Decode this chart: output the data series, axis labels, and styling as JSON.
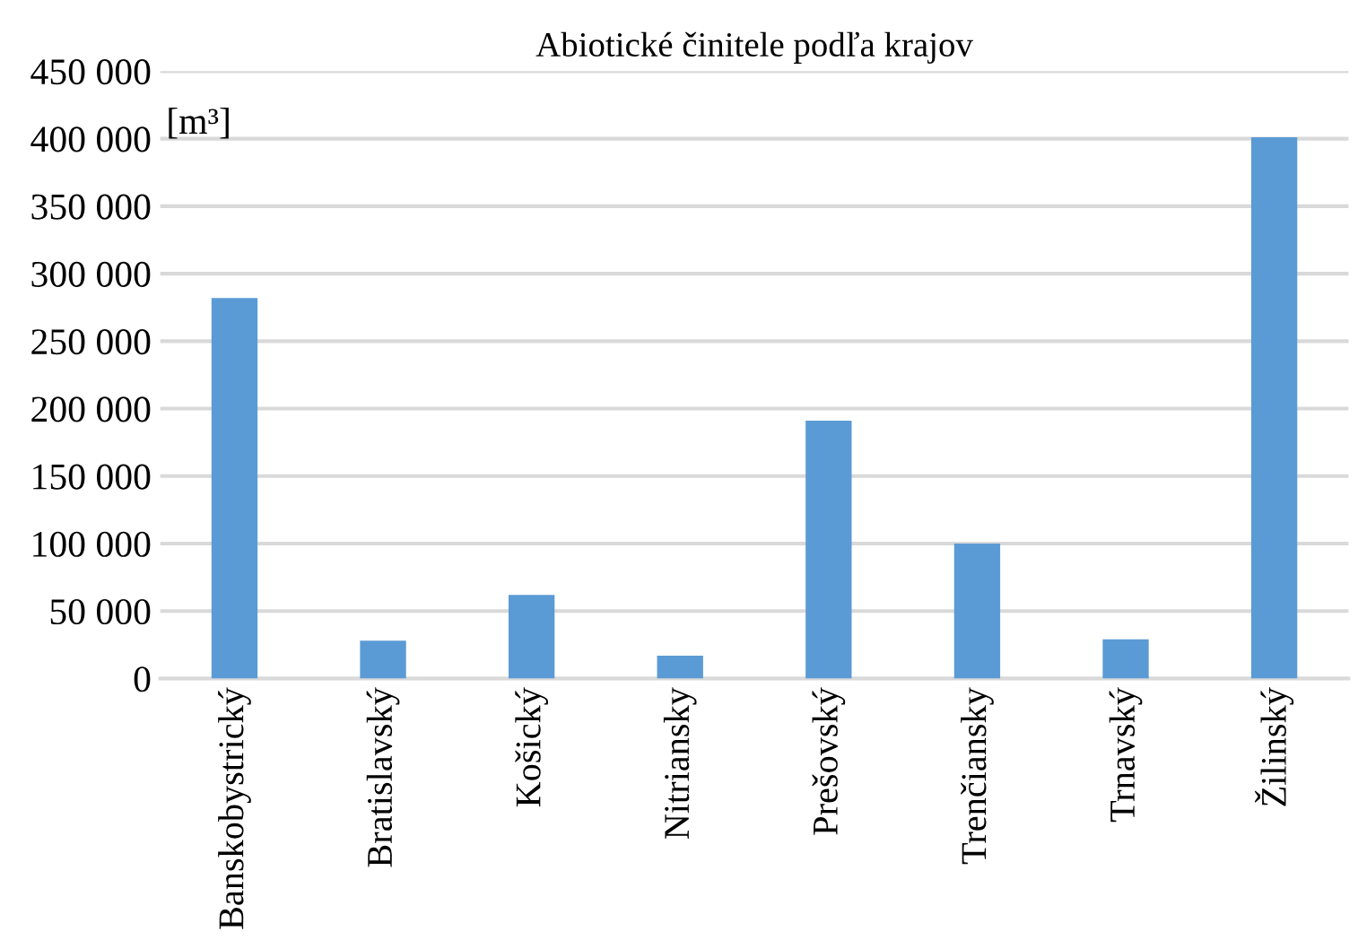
{
  "chart_data": {
    "type": "bar",
    "title": "Abiotické činitele podľa krajov",
    "ylabel": "[m³]",
    "categories": [
      "Banskobystrický",
      "Bratislavský",
      "Košický",
      "Nitriansky",
      "Prešovský",
      "Trenčiansky",
      "Trnavský",
      "Žilinský"
    ],
    "values": [
      282000,
      28000,
      62000,
      17000,
      191000,
      100000,
      29000,
      401000
    ],
    "color": "#5b9bd5",
    "ylim": [
      0,
      450000
    ],
    "yticks": [
      0,
      {
        "value": 50000,
        "label": "50 000"
      },
      {
        "value": 100000,
        "label": "100 000"
      },
      {
        "value": 150000,
        "label": "150 000"
      },
      {
        "value": 200000,
        "label": "200 000"
      },
      {
        "value": 250000,
        "label": "250 000"
      },
      {
        "value": 300000,
        "label": "300 000"
      },
      {
        "value": 350000,
        "label": "350 000"
      },
      {
        "value": 400000,
        "label": "400 000"
      },
      {
        "value": 450000,
        "label": "450 000"
      }
    ],
    "grid": "y",
    "legend": false
  }
}
